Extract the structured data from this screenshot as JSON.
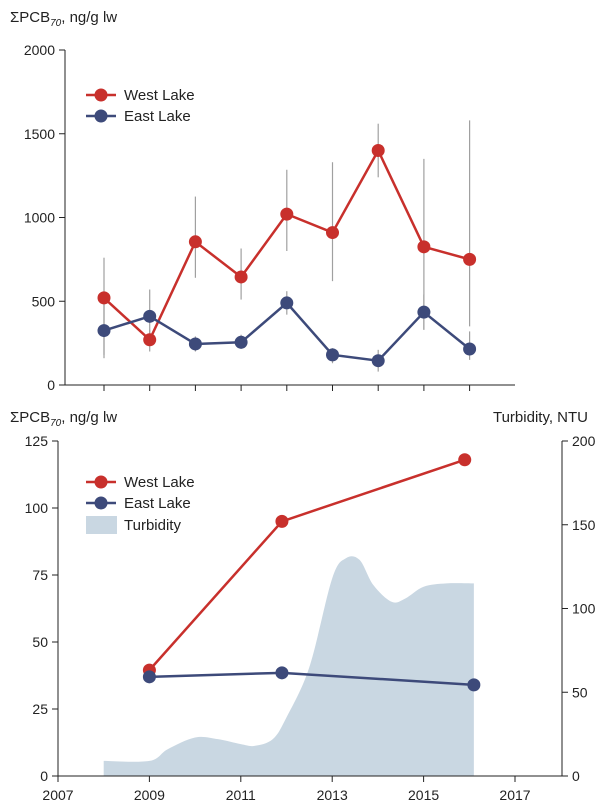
{
  "colors": {
    "west": "#c8302c",
    "east": "#3d4a7a",
    "turbidity": "#c9d7e2",
    "error_bar": "#a0a0a0",
    "axis": "#222222"
  },
  "chart_data": [
    {
      "type": "line",
      "title": "",
      "ylabel": "ΣPCB",
      "ylabel_sub": "70",
      "ylabel_suffix": ", ng/g lw",
      "ylim": [
        0,
        2000
      ],
      "yticks": [
        0,
        500,
        1000,
        1500,
        2000
      ],
      "ytick_labels": [
        "0",
        "500",
        "1000",
        "1500",
        "2000"
      ],
      "x": [
        2008,
        2009,
        2011,
        2012,
        2013,
        2014,
        2015,
        2016,
        2017
      ],
      "legend_position": "top-left",
      "series": [
        {
          "name": "West Lake",
          "values": [
            520,
            270,
            855,
            645,
            1020,
            910,
            1400,
            825,
            750
          ],
          "error_low": [
            180,
            200,
            640,
            510,
            800,
            620,
            1240,
            330,
            350
          ],
          "error_high": [
            760,
            330,
            1125,
            815,
            1285,
            1330,
            1560,
            1350,
            1580
          ]
        },
        {
          "name": "East Lake",
          "values": [
            325,
            410,
            245,
            255,
            490,
            180,
            145,
            435,
            215
          ],
          "error_low": [
            160,
            290,
            200,
            215,
            420,
            130,
            80,
            330,
            150
          ],
          "error_high": [
            520,
            570,
            290,
            300,
            560,
            220,
            210,
            540,
            320
          ]
        }
      ]
    },
    {
      "type": "line",
      "title": "",
      "ylabel": "ΣPCB",
      "ylabel_sub": "70",
      "ylabel_suffix": ", ng/g lw",
      "ylim": [
        0,
        125
      ],
      "yticks": [
        0,
        25,
        50,
        75,
        100,
        125
      ],
      "ytick_labels": [
        "0",
        "25",
        "50",
        "75",
        "100",
        "125"
      ],
      "y2label": "Turbidity, NTU",
      "y2lim": [
        0,
        200
      ],
      "y2ticks": [
        0,
        50,
        100,
        150,
        200
      ],
      "y2tick_labels": [
        "0",
        "50",
        "100",
        "150",
        "200"
      ],
      "xlim": [
        2007,
        2018
      ],
      "xticks": [
        2007,
        2009,
        2011,
        2013,
        2015,
        2017
      ],
      "xtick_labels": [
        "2007",
        "2009",
        "2011",
        "2013",
        "2015",
        "2017"
      ],
      "legend_position": "top-left",
      "series": [
        {
          "name": "West Lake",
          "x": [
            2009,
            2011.9,
            2015.9
          ],
          "values": [
            39.5,
            95,
            118
          ]
        },
        {
          "name": "East Lake",
          "x": [
            2009,
            2011.9,
            2016.1
          ],
          "values": [
            37,
            38.5,
            34
          ]
        }
      ],
      "area": {
        "name": "Turbidity",
        "x": [
          2008,
          2009,
          2009.4,
          2010,
          2010.5,
          2011,
          2011.3,
          2011.7,
          2012,
          2012.5,
          2013,
          2013.3,
          2013.6,
          2013.9,
          2014.3,
          2014.6,
          2015,
          2015.5,
          2016.1
        ],
        "values": [
          9,
          9,
          16,
          23,
          22,
          19,
          18,
          22,
          35,
          65,
          118,
          130,
          129,
          114,
          104,
          106,
          113,
          115,
          115
        ]
      }
    }
  ]
}
